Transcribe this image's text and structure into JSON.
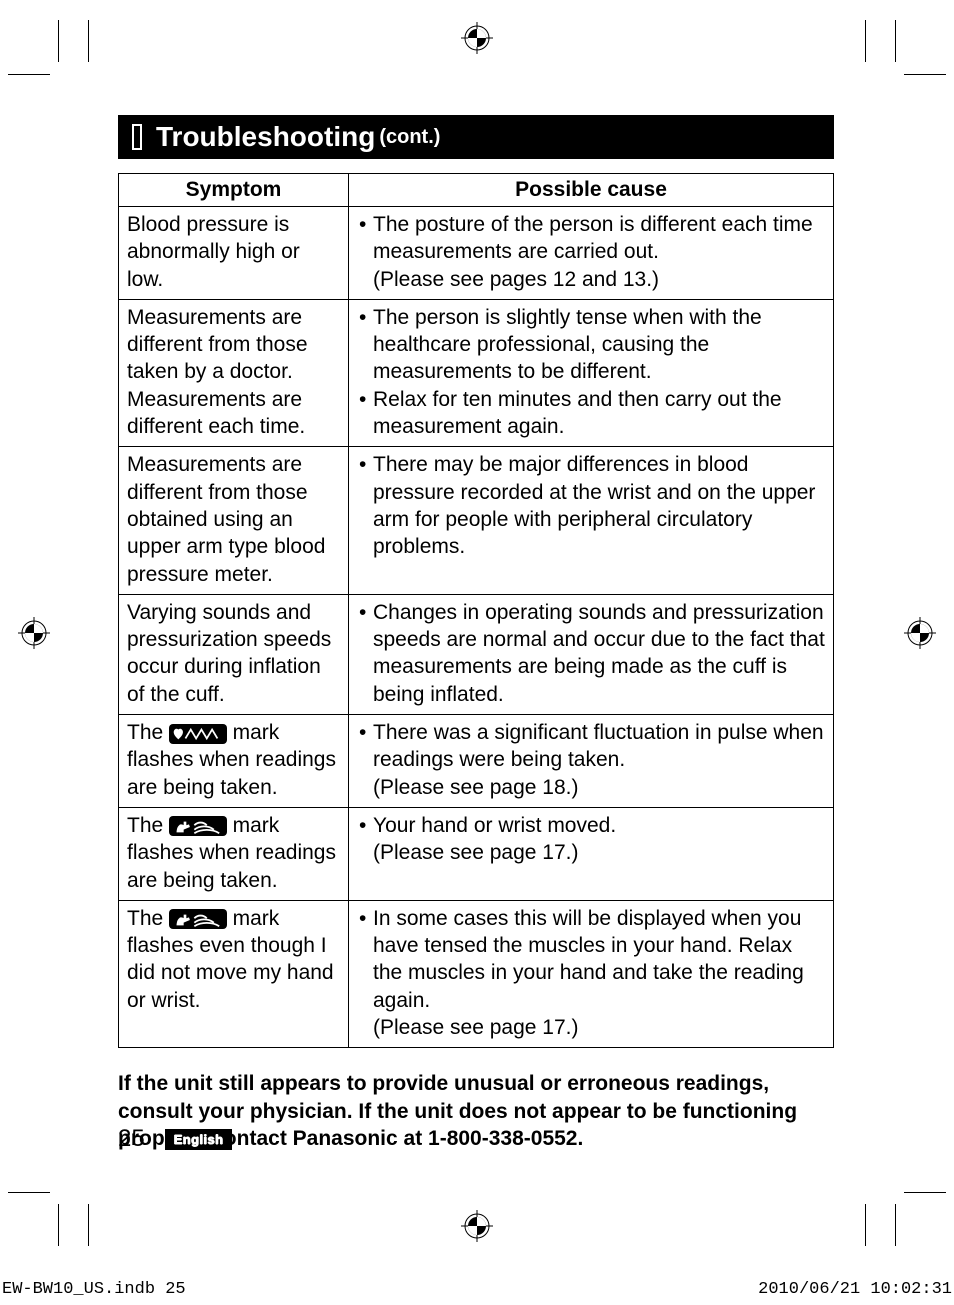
{
  "heading": {
    "title": "Troubleshooting",
    "cont": "(cont.)"
  },
  "table": {
    "headers": {
      "symptom": "Symptom",
      "cause": "Possible cause"
    },
    "rows": [
      {
        "symptom": "Blood pressure is abnormally high or low.",
        "causes": [
          "The posture of the person is different each time measurements are carried out.\n(Please see pages 12 and 13.)"
        ]
      },
      {
        "symptom": "Measurements are different from those taken by a doctor. Measurements are different each time.",
        "causes": [
          "The person is slightly tense when with the healthcare professional, causing the measurements to be different.",
          "Relax for ten minutes and then carry out the measurement again."
        ]
      },
      {
        "symptom": "Measurements are different from those obtained using an upper arm type blood pressure meter.",
        "causes": [
          "There may be major differences in blood pressure recorded at the wrist and on the upper arm for people with peripheral circulatory problems."
        ]
      },
      {
        "symptom": "Varying sounds and pressurization speeds occur during inflation of the cuff.",
        "causes": [
          "Changes in operating sounds and pressurization speeds are normal and occur due to the fact that measurements are being made as the cuff is being inflated."
        ]
      },
      {
        "symptom_pre": "The ",
        "symptom_icon": "pulse",
        "symptom_post": " mark flashes when readings are being taken.",
        "causes": [
          "There was a significant fluctuation in pulse when readings were being taken.\n(Please see page 18.)"
        ]
      },
      {
        "symptom_pre": "The ",
        "symptom_icon": "move",
        "symptom_post": " mark flashes when readings are being taken.",
        "causes": [
          "Your hand or wrist moved.\n(Please see page 17.)"
        ]
      },
      {
        "symptom_pre": "The ",
        "symptom_icon": "move",
        "symptom_post": " mark flashes even though I did not move my hand or wrist.",
        "causes": [
          "In some cases this will be displayed when you have tensed the muscles in your hand. Relax the muscles in your hand and take the reading again.\n(Please see page 17.)"
        ]
      }
    ]
  },
  "note": "If the unit still appears to provide unusual or erroneous readings, consult your physician. If the unit does not appear to be functioning properly, contact Panasonic at 1-800-338-0552.",
  "footer": {
    "page": "25",
    "lang": "English"
  },
  "slug": {
    "file": "EW-BW10_US.indb   25",
    "stamp": "2010/06/21   10:02:31"
  }
}
